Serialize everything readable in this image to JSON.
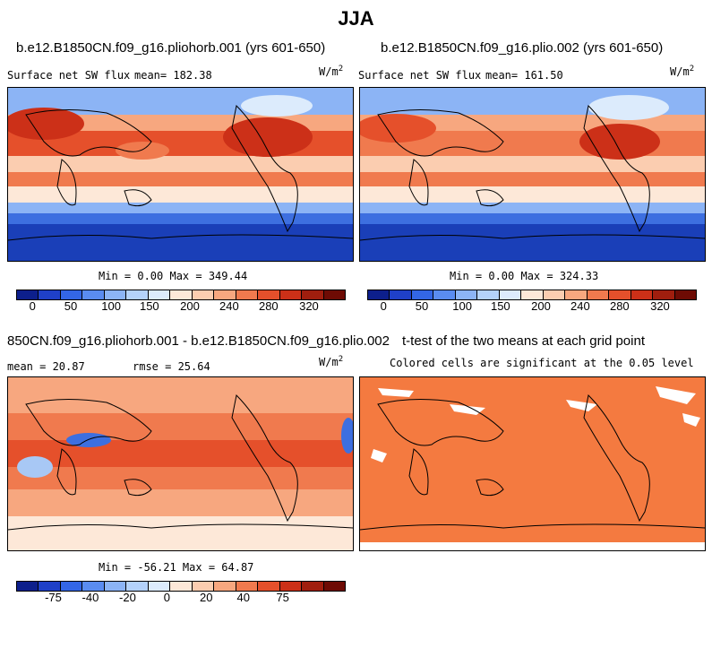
{
  "title": "JJA",
  "panels": [
    {
      "id": "p1",
      "case": "b.e12.B1850CN.f09_g16.pliohorb.001 (yrs 601-650)",
      "variable": "Surface net SW flux",
      "mean_text": "mean= 182.38",
      "units": "W/m",
      "units_exp": "2",
      "minmax": "Min =   0.00 Max = 349.44"
    },
    {
      "id": "p2",
      "case": "b.e12.B1850CN.f09_g16.plio.002 (yrs 601-650)",
      "variable": "Surface net SW flux",
      "mean_text": "mean= 161.50",
      "units": "W/m",
      "units_exp": "2",
      "minmax": "Min =   0.00 Max = 324.33"
    },
    {
      "id": "p3",
      "case": "850CN.f09_g16.pliohorb.001 - b.e12.B1850CN.f09_g16.plio.002",
      "mean_text": "mean =  20.87",
      "rmse_text": "rmse =  25.64",
      "units": "W/m",
      "units_exp": "2",
      "minmax": "Min = -56.21 Max =  64.87"
    },
    {
      "id": "p4",
      "case": "t-test of the two means at each grid point",
      "subtitle": "Colored cells are significant at the 0.05 level"
    }
  ],
  "colorbars": {
    "absolute": {
      "colors": [
        "#0d1f8c",
        "#1f40c8",
        "#3366e6",
        "#5a8cf0",
        "#8cb4f5",
        "#b4d2fa",
        "#dcebfc",
        "#fde8d8",
        "#fbcdb0",
        "#f7a77f",
        "#f07a4e",
        "#e5502b",
        "#cc3018",
        "#a01e0e",
        "#6e0b04"
      ],
      "labels": [
        "0",
        "50",
        "100",
        "150",
        "200",
        "240",
        "280",
        "320"
      ]
    },
    "difference": {
      "colors": [
        "#0d1f8c",
        "#1f40c8",
        "#3366e6",
        "#5a8cf0",
        "#8cb4f5",
        "#b4d2fa",
        "#dcebfc",
        "#fde8d8",
        "#fbcdb0",
        "#f7a77f",
        "#f07a4e",
        "#e5502b",
        "#cc3018",
        "#a01e0e",
        "#6e0b04"
      ],
      "labels": [
        "-75",
        "-40",
        "-20",
        "0",
        "20",
        "40",
        "75"
      ]
    }
  },
  "map_colors": {
    "deep_blue": "#1a3fb8",
    "mid_blue": "#3d6fe0",
    "light_blue": "#a8c8f5",
    "pale": "#fde8d8",
    "peach": "#f7a77f",
    "orange": "#f07a4e",
    "red": "#e5502b",
    "dark_red": "#cc3018",
    "ttest": "#f47a40"
  }
}
